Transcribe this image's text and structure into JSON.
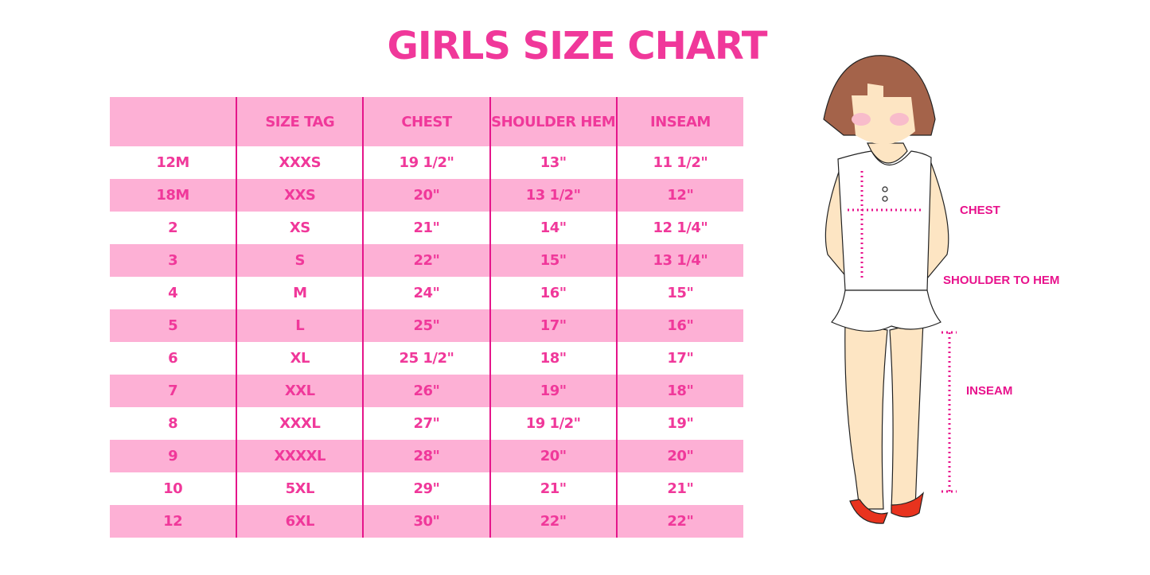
{
  "title": "GIRLS SIZE CHART",
  "table": {
    "headers": [
      "",
      "SIZE TAG",
      "CHEST",
      "SHOULDER HEM",
      "INSEAM"
    ],
    "rows": [
      [
        "12M",
        "XXXS",
        "19 1/2\"",
        "13\"",
        "11 1/2\""
      ],
      [
        "18M",
        "XXS",
        "20\"",
        "13 1/2\"",
        "12\""
      ],
      [
        "2",
        "XS",
        "21\"",
        "14\"",
        "12 1/4\""
      ],
      [
        "3",
        "S",
        "22\"",
        "15\"",
        "13 1/4\""
      ],
      [
        "4",
        "M",
        "24\"",
        "16\"",
        "15\""
      ],
      [
        "5",
        "L",
        "25\"",
        "17\"",
        "16\""
      ],
      [
        "6",
        "XL",
        "25 1/2\"",
        "18\"",
        "17\""
      ],
      [
        "7",
        "XXL",
        "26\"",
        "19\"",
        "18\""
      ],
      [
        "8",
        "XXXL",
        "27\"",
        "19 1/2\"",
        "19\""
      ],
      [
        "9",
        "XXXXL",
        "28\"",
        "20\"",
        "20\""
      ],
      [
        "10",
        "5XL",
        "29\"",
        "21\"",
        "21\""
      ],
      [
        "12",
        "6XL",
        "30\"",
        "22\"",
        "22\""
      ]
    ]
  },
  "illustration": {
    "labels": {
      "chest": "CHEST",
      "shoulder": "SHOULDER TO HEM",
      "inseam": "INSEAM"
    }
  },
  "colors": {
    "accent": "#f0389a",
    "stripe": "#fdb0d5",
    "divider": "#e5158a"
  }
}
